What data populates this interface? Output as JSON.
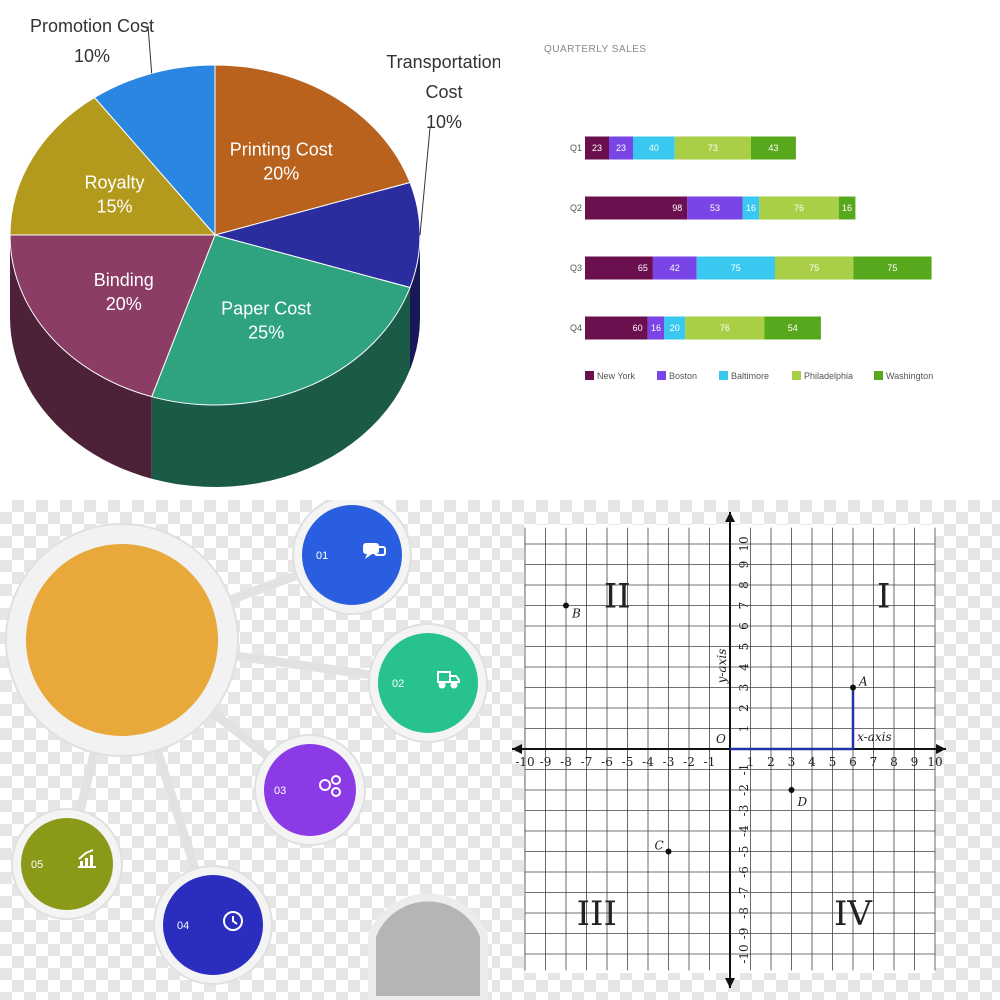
{
  "chart_data": [
    {
      "type": "pie",
      "title": "",
      "slices": [
        {
          "label": "Printing Cost",
          "value": 20,
          "display": "20%",
          "color": "#b8621e"
        },
        {
          "label": "Transportation Cost",
          "value": 10,
          "display": "10%",
          "color": "#2b2c9e"
        },
        {
          "label": "Paper Cost",
          "value": 25,
          "display": "25%",
          "color": "#2fa37f"
        },
        {
          "label": "Binding",
          "value": 20,
          "display": "20%",
          "color": "#8c3d66"
        },
        {
          "label": "Royalty",
          "value": 15,
          "display": "15%",
          "color": "#b39a1c"
        },
        {
          "label": "Promotion Cost",
          "value": 10,
          "display": "10%",
          "color": "#2a86e0"
        }
      ]
    },
    {
      "type": "bar",
      "orientation": "horizontal",
      "stacked": true,
      "title": "QUARTERLY SALES",
      "categories": [
        "Q1",
        "Q2",
        "Q3",
        "Q4"
      ],
      "series": [
        {
          "name": "New York",
          "color": "#6b0f4f",
          "values": [
            23,
            98,
            65,
            60
          ]
        },
        {
          "name": "Boston",
          "color": "#7a45e6",
          "values": [
            23,
            53,
            42,
            16
          ]
        },
        {
          "name": "Baltimore",
          "color": "#38c8f0",
          "values": [
            40,
            16,
            75,
            20
          ]
        },
        {
          "name": "Philadelphia",
          "color": "#a8cf45",
          "values": [
            73,
            76,
            75,
            76
          ]
        },
        {
          "name": "Washington",
          "color": "#58a81e",
          "values": [
            43,
            16,
            75,
            54
          ]
        }
      ],
      "legend": "bottom"
    },
    {
      "type": "scatter",
      "title": "",
      "xlim": [
        -10,
        10
      ],
      "ylim": [
        -10,
        10
      ],
      "grid": true,
      "xlabel": "x-axis",
      "ylabel": "y-axis",
      "origin_label": "O",
      "x_ticks": [
        -10,
        -9,
        -8,
        -7,
        -6,
        -5,
        -4,
        -3,
        -2,
        -1,
        1,
        2,
        3,
        4,
        5,
        6,
        7,
        8,
        9,
        10
      ],
      "y_ticks": [
        -10,
        -9,
        -8,
        -7,
        -6,
        -5,
        -4,
        -3,
        -2,
        -1,
        1,
        2,
        3,
        4,
        5,
        6,
        7,
        8,
        9,
        10
      ],
      "quadrants": [
        "I",
        "II",
        "III",
        "IV"
      ],
      "points": [
        {
          "label": "A",
          "x": 6,
          "y": 3
        },
        {
          "label": "B",
          "x": -8,
          "y": 7
        },
        {
          "label": "C",
          "x": -3,
          "y": -5
        },
        {
          "label": "D",
          "x": 3,
          "y": -2
        }
      ]
    }
  ],
  "infographic": {
    "items": [
      {
        "number": "01",
        "color": "#2a5ee0",
        "icon": "chat-icon"
      },
      {
        "number": "02",
        "color": "#27c28f",
        "icon": "truck-icon"
      },
      {
        "number": "03",
        "color": "#8a3be6",
        "icon": "circles-icon"
      },
      {
        "number": "04",
        "color": "#2b2dbf",
        "icon": "clock-icon"
      },
      {
        "number": "05",
        "color": "#8a9a18",
        "icon": "growth-chart-icon"
      }
    ],
    "hub_color": "#e8a83a"
  }
}
